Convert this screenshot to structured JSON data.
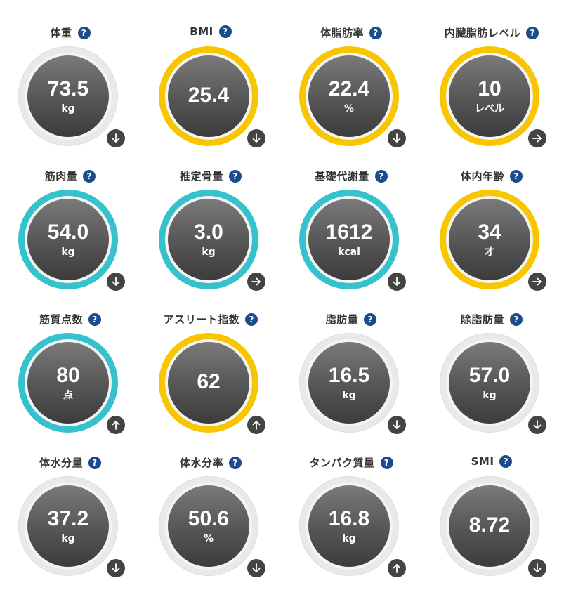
{
  "help_icon_label": "?",
  "metrics": [
    {
      "title": "体重",
      "value": "73.5",
      "unit": "kg",
      "ring": "gray",
      "trend": "down"
    },
    {
      "title": "BMI",
      "value": "25.4",
      "unit": "",
      "ring": "yellow",
      "trend": "down"
    },
    {
      "title": "体脂肪率",
      "value": "22.4",
      "unit": "%",
      "ring": "yellow",
      "trend": "down"
    },
    {
      "title": "内臓脂肪レベル",
      "value": "10",
      "unit": "レベル",
      "ring": "yellow",
      "trend": "right"
    },
    {
      "title": "筋肉量",
      "value": "54.0",
      "unit": "kg",
      "ring": "teal",
      "trend": "down"
    },
    {
      "title": "推定骨量",
      "value": "3.0",
      "unit": "kg",
      "ring": "teal",
      "trend": "right"
    },
    {
      "title": "基礎代謝量",
      "value": "1612",
      "unit": "kcal",
      "ring": "teal",
      "trend": "down"
    },
    {
      "title": "体内年齢",
      "value": "34",
      "unit": "才",
      "ring": "yellow",
      "trend": "right"
    },
    {
      "title": "筋質点数",
      "value": "80",
      "unit": "点",
      "ring": "teal",
      "trend": "up"
    },
    {
      "title": "アスリート指数",
      "value": "62",
      "unit": "",
      "ring": "yellow",
      "trend": "up"
    },
    {
      "title": "脂肪量",
      "value": "16.5",
      "unit": "kg",
      "ring": "gray",
      "trend": "down"
    },
    {
      "title": "除脂肪量",
      "value": "57.0",
      "unit": "kg",
      "ring": "gray",
      "trend": "down"
    },
    {
      "title": "体水分量",
      "value": "37.2",
      "unit": "kg",
      "ring": "gray",
      "trend": "down"
    },
    {
      "title": "体水分率",
      "value": "50.6",
      "unit": "%",
      "ring": "gray",
      "trend": "down"
    },
    {
      "title": "タンパク質量",
      "value": "16.8",
      "unit": "kg",
      "ring": "gray",
      "trend": "up"
    },
    {
      "title": "SMI",
      "value": "8.72",
      "unit": "",
      "ring": "gray",
      "trend": "down"
    }
  ],
  "colors": {
    "yellow_ring": "#f7c600",
    "teal_ring": "#36c2cc",
    "gray_ring": "#e9e9e9",
    "help_icon": "#1a4d8c",
    "trend_button": "#444444"
  }
}
